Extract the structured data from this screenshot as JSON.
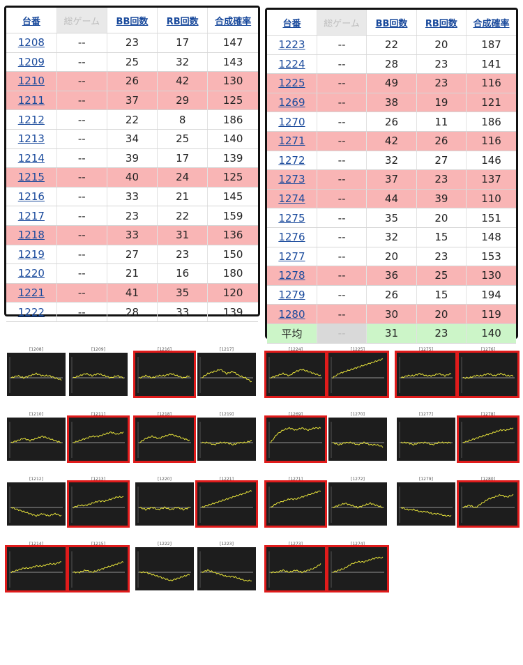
{
  "headers": [
    "台番",
    "総ゲーム",
    "BB回数",
    "RB回数",
    "合成確率"
  ],
  "left_rows": [
    {
      "id": "1208",
      "total": "--",
      "bb": "23",
      "rb": "17",
      "rate": "147",
      "hl": false
    },
    {
      "id": "1209",
      "total": "--",
      "bb": "25",
      "rb": "32",
      "rate": "143",
      "hl": false
    },
    {
      "id": "1210",
      "total": "--",
      "bb": "26",
      "rb": "42",
      "rate": "130",
      "hl": true
    },
    {
      "id": "1211",
      "total": "--",
      "bb": "37",
      "rb": "29",
      "rate": "125",
      "hl": true
    },
    {
      "id": "1212",
      "total": "--",
      "bb": "22",
      "rb": "8",
      "rate": "186",
      "hl": false
    },
    {
      "id": "1213",
      "total": "--",
      "bb": "34",
      "rb": "25",
      "rate": "140",
      "hl": false
    },
    {
      "id": "1214",
      "total": "--",
      "bb": "39",
      "rb": "17",
      "rate": "139",
      "hl": false
    },
    {
      "id": "1215",
      "total": "--",
      "bb": "40",
      "rb": "24",
      "rate": "125",
      "hl": true
    },
    {
      "id": "1216",
      "total": "--",
      "bb": "33",
      "rb": "21",
      "rate": "145",
      "hl": false
    },
    {
      "id": "1217",
      "total": "--",
      "bb": "23",
      "rb": "22",
      "rate": "159",
      "hl": false
    },
    {
      "id": "1218",
      "total": "--",
      "bb": "33",
      "rb": "31",
      "rate": "136",
      "hl": true
    },
    {
      "id": "1219",
      "total": "--",
      "bb": "27",
      "rb": "23",
      "rate": "150",
      "hl": false
    },
    {
      "id": "1220",
      "total": "--",
      "bb": "21",
      "rb": "16",
      "rate": "180",
      "hl": false
    },
    {
      "id": "1221",
      "total": "--",
      "bb": "41",
      "rb": "35",
      "rate": "120",
      "hl": true
    },
    {
      "id": "1222",
      "total": "--",
      "bb": "28",
      "rb": "33",
      "rate": "139",
      "hl": false
    }
  ],
  "right_rows": [
    {
      "id": "1223",
      "total": "--",
      "bb": "22",
      "rb": "20",
      "rate": "187",
      "hl": false
    },
    {
      "id": "1224",
      "total": "--",
      "bb": "28",
      "rb": "23",
      "rate": "141",
      "hl": false
    },
    {
      "id": "1225",
      "total": "--",
      "bb": "49",
      "rb": "23",
      "rate": "116",
      "hl": true
    },
    {
      "id": "1269",
      "total": "--",
      "bb": "38",
      "rb": "19",
      "rate": "121",
      "hl": true
    },
    {
      "id": "1270",
      "total": "--",
      "bb": "26",
      "rb": "11",
      "rate": "186",
      "hl": false
    },
    {
      "id": "1271",
      "total": "--",
      "bb": "42",
      "rb": "26",
      "rate": "116",
      "hl": true
    },
    {
      "id": "1272",
      "total": "--",
      "bb": "32",
      "rb": "27",
      "rate": "146",
      "hl": false
    },
    {
      "id": "1273",
      "total": "--",
      "bb": "37",
      "rb": "23",
      "rate": "137",
      "hl": true
    },
    {
      "id": "1274",
      "total": "--",
      "bb": "44",
      "rb": "39",
      "rate": "110",
      "hl": true
    },
    {
      "id": "1275",
      "total": "--",
      "bb": "35",
      "rb": "20",
      "rate": "151",
      "hl": false
    },
    {
      "id": "1276",
      "total": "--",
      "bb": "32",
      "rb": "15",
      "rate": "148",
      "hl": false
    },
    {
      "id": "1277",
      "total": "--",
      "bb": "20",
      "rb": "23",
      "rate": "153",
      "hl": false
    },
    {
      "id": "1278",
      "total": "--",
      "bb": "36",
      "rb": "25",
      "rate": "130",
      "hl": true
    },
    {
      "id": "1279",
      "total": "--",
      "bb": "26",
      "rb": "15",
      "rate": "194",
      "hl": false
    },
    {
      "id": "1280",
      "total": "--",
      "bb": "30",
      "rb": "20",
      "rate": "119",
      "hl": true
    }
  ],
  "average": {
    "label": "平均",
    "total": "--",
    "bb": "31",
    "rb": "23",
    "rate": "140"
  },
  "graphs": [
    {
      "label": "[1208]",
      "hl": false,
      "trend": [
        0,
        1,
        0,
        1,
        2,
        1,
        1,
        0,
        -1
      ]
    },
    {
      "label": "[1209]",
      "hl": false,
      "trend": [
        0,
        1,
        2,
        1,
        2,
        1,
        0,
        1,
        0
      ]
    },
    {
      "label": "[1216]",
      "hl": true,
      "trend": [
        0,
        1,
        0,
        1,
        1,
        2,
        1,
        0,
        1
      ]
    },
    {
      "label": "[1217]",
      "hl": false,
      "trend": [
        0,
        2,
        3,
        4,
        2,
        3,
        1,
        0,
        -2
      ]
    },
    {
      "label": "[1224]",
      "hl": true,
      "trend": [
        0,
        1,
        2,
        1,
        3,
        4,
        3,
        2,
        1
      ]
    },
    {
      "label": "[1225]",
      "hl": true,
      "trend": [
        0,
        2,
        3,
        4,
        5,
        6,
        7,
        8,
        9
      ]
    },
    {
      "label": "[1275]",
      "hl": true,
      "trend": [
        0,
        1,
        1,
        2,
        1,
        1,
        2,
        1,
        2
      ]
    },
    {
      "label": "[1276]",
      "hl": true,
      "trend": [
        0,
        0,
        1,
        1,
        2,
        1,
        2,
        1,
        1
      ]
    },
    {
      "label": "[1210]",
      "hl": false,
      "trend": [
        0,
        1,
        2,
        1,
        2,
        3,
        2,
        1,
        0
      ]
    },
    {
      "label": "[1211]",
      "hl": true,
      "trend": [
        0,
        1,
        2,
        3,
        3,
        4,
        5,
        4,
        5
      ]
    },
    {
      "label": "[1218]",
      "hl": true,
      "trend": [
        0,
        2,
        3,
        2,
        3,
        4,
        3,
        2,
        1
      ]
    },
    {
      "label": "[1219]",
      "hl": false,
      "trend": [
        0,
        0,
        -1,
        0,
        0,
        -1,
        0,
        0,
        1
      ]
    },
    {
      "label": "[1269]",
      "hl": true,
      "trend": [
        0,
        4,
        6,
        7,
        6,
        7,
        6,
        7,
        7
      ]
    },
    {
      "label": "[1270]",
      "hl": false,
      "trend": [
        0,
        -1,
        0,
        0,
        -1,
        0,
        -1,
        -1,
        -2
      ]
    },
    {
      "label": "[1277]",
      "hl": false,
      "trend": [
        0,
        0,
        -1,
        0,
        0,
        -1,
        0,
        0,
        0
      ]
    },
    {
      "label": "[1278]",
      "hl": true,
      "trend": [
        0,
        1,
        2,
        3,
        4,
        5,
        6,
        6,
        7
      ]
    },
    {
      "label": "[1212]",
      "hl": false,
      "trend": [
        0,
        -1,
        -2,
        -3,
        -4,
        -3,
        -4,
        -3,
        -4
      ]
    },
    {
      "label": "[1213]",
      "hl": true,
      "trend": [
        0,
        1,
        1,
        2,
        3,
        3,
        4,
        5,
        5
      ]
    },
    {
      "label": "[1220]",
      "hl": false,
      "trend": [
        0,
        -1,
        0,
        -1,
        0,
        -1,
        0,
        -1,
        0
      ]
    },
    {
      "label": "[1221]",
      "hl": true,
      "trend": [
        0,
        1,
        2,
        3,
        4,
        5,
        6,
        7,
        8
      ]
    },
    {
      "label": "[1271]",
      "hl": true,
      "trend": [
        0,
        2,
        3,
        4,
        4,
        5,
        6,
        7,
        8
      ]
    },
    {
      "label": "[1272]",
      "hl": false,
      "trend": [
        0,
        1,
        2,
        1,
        0,
        1,
        2,
        1,
        0
      ]
    },
    {
      "label": "[1279]",
      "hl": false,
      "trend": [
        0,
        -1,
        -1,
        -2,
        -2,
        -3,
        -3,
        -4,
        -4
      ]
    },
    {
      "label": "[1280]",
      "hl": true,
      "trend": [
        0,
        1,
        0,
        2,
        4,
        5,
        6,
        5,
        6
      ]
    },
    {
      "label": "[1214]",
      "hl": true,
      "trend": [
        0,
        1,
        2,
        2,
        3,
        3,
        4,
        4,
        5
      ]
    },
    {
      "label": "[1215]",
      "hl": true,
      "trend": [
        0,
        0,
        1,
        0,
        1,
        2,
        3,
        4,
        5
      ]
    },
    {
      "label": "[1222]",
      "hl": false,
      "trend": [
        0,
        0,
        -1,
        -2,
        -3,
        -4,
        -3,
        -2,
        -1
      ]
    },
    {
      "label": "[1223]",
      "hl": false,
      "trend": [
        0,
        1,
        0,
        -1,
        -2,
        -2,
        -3,
        -4,
        -4
      ]
    },
    {
      "label": "[1273]",
      "hl": true,
      "trend": [
        0,
        0,
        1,
        0,
        1,
        0,
        1,
        2,
        4
      ]
    },
    {
      "label": "[1274]",
      "hl": true,
      "trend": [
        0,
        1,
        2,
        4,
        5,
        5,
        6,
        7,
        7
      ]
    }
  ],
  "colors": {
    "highlight": "#f9b5b5",
    "average": "#ccf5c8",
    "graph_bg": "#1d1d1d",
    "graph_line": "#e8e43a",
    "graph_frame": "#e01b1b"
  }
}
